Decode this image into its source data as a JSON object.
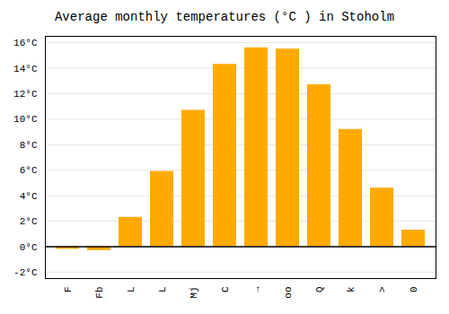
{
  "chart_data": {
    "type": "bar",
    "title": "Average monthly temperatures (°C ) in Stoholm",
    "categories": [
      "F",
      "Fb",
      "L",
      "L",
      "Mj",
      "C",
      "→",
      "oo",
      "Q",
      "k",
      ">",
      "0"
    ],
    "values": [
      -0.2,
      -0.3,
      2.3,
      5.9,
      10.7,
      14.3,
      15.6,
      15.5,
      12.7,
      9.2,
      4.6,
      1.3
    ],
    "color": "#FFAA00",
    "ylim": [
      -2.5,
      16.5
    ],
    "yticks": [
      {
        "value": -2,
        "label": "-2°C"
      },
      {
        "value": 0,
        "label": "0°C"
      },
      {
        "value": 2,
        "label": "2°C"
      },
      {
        "value": 4,
        "label": "4°C"
      },
      {
        "value": 6,
        "label": "6°C"
      },
      {
        "value": 8,
        "label": "8°C"
      },
      {
        "value": 10,
        "label": "10°C"
      },
      {
        "value": 12,
        "label": "12°C"
      },
      {
        "value": 14,
        "label": "14°C"
      },
      {
        "value": 16,
        "label": "16°C"
      }
    ],
    "grid": true
  }
}
